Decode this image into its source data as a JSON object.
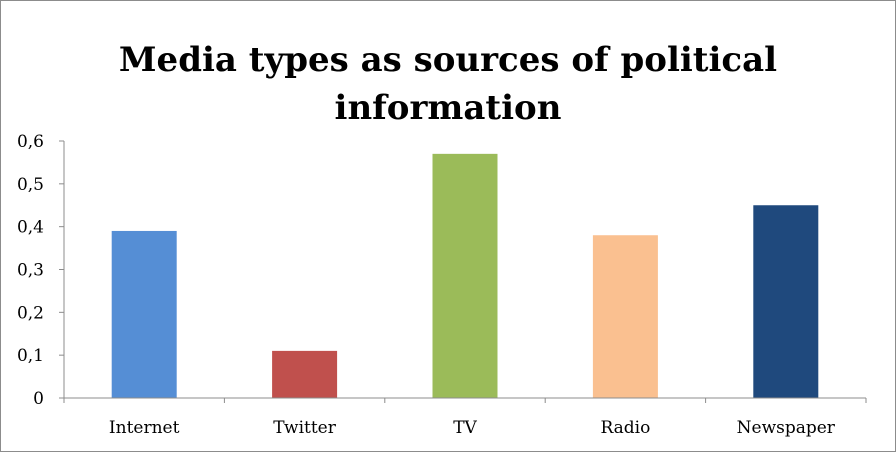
{
  "chart_data": {
    "type": "bar",
    "title_lines": [
      "Media types as sources of political",
      "information"
    ],
    "categories": [
      "Internet",
      "Twitter",
      "TV",
      "Radio",
      "Newspaper"
    ],
    "values": [
      0.39,
      0.11,
      0.57,
      0.38,
      0.45
    ],
    "colors": [
      "#558ed5",
      "#c0504d",
      "#9bbb59",
      "#fac090",
      "#1f497d"
    ],
    "ylim": [
      0,
      0.6
    ],
    "yticks": [
      "0",
      "0,1",
      "0,2",
      "0,3",
      "0,4",
      "0,5",
      "0,6"
    ],
    "grid": false,
    "legend": "none"
  }
}
